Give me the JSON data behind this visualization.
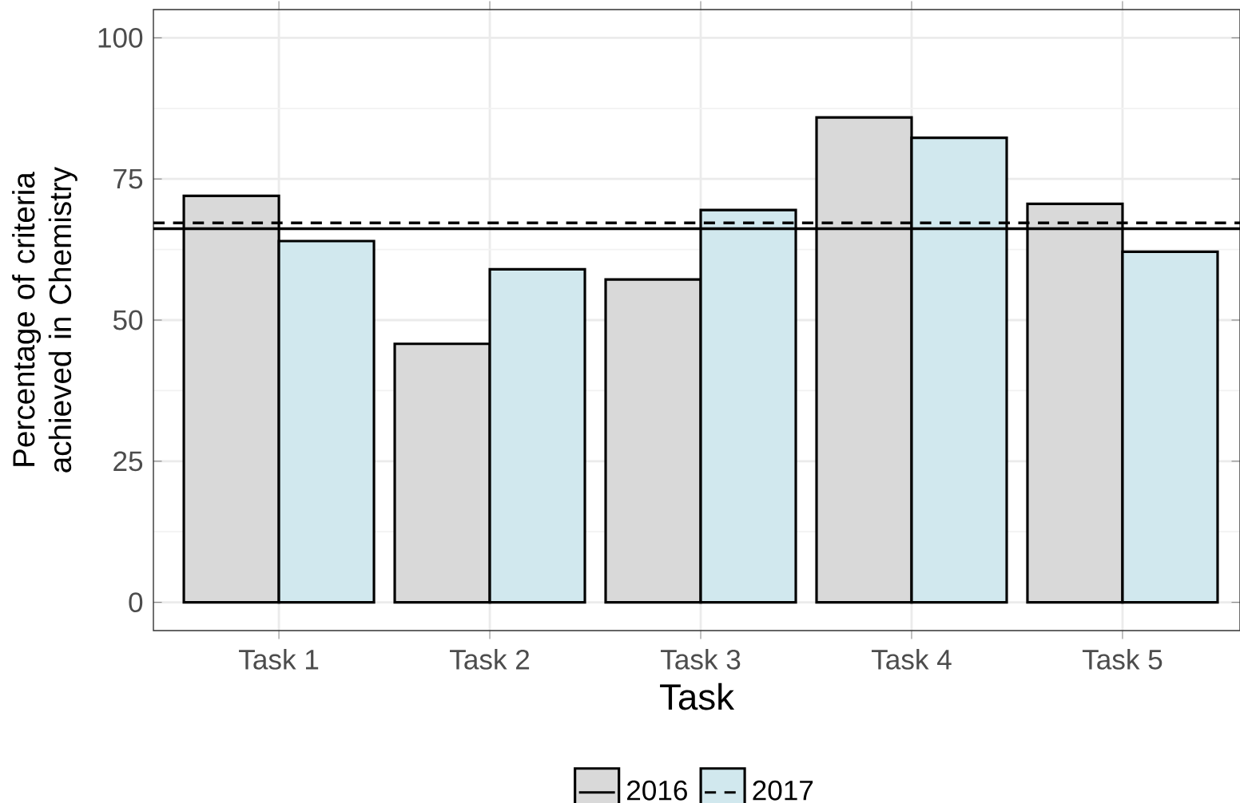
{
  "chart_data": {
    "type": "bar",
    "xlabel": "Task",
    "ylabel": "Percentage of criteria achieved in Chemistry",
    "categories": [
      "Task 1",
      "Task 2",
      "Task 3",
      "Task 4",
      "Task 5"
    ],
    "series": [
      {
        "name": "2016",
        "color": "#d9d9d9",
        "values": [
          72.0,
          45.8,
          57.2,
          85.9,
          70.6
        ]
      },
      {
        "name": "2017",
        "color": "#d1e8ee",
        "values": [
          64.0,
          59.0,
          69.5,
          82.3,
          62.1
        ]
      }
    ],
    "ylim": [
      -5,
      105
    ],
    "yticks": [
      0,
      25,
      50,
      75,
      100
    ],
    "ref_lines": [
      {
        "axis": "y",
        "value": 66.2,
        "color": "#000000",
        "line_style": "solid"
      },
      {
        "axis": "y",
        "value": 67.2,
        "color": "#000000",
        "line_style": "dashed"
      }
    ],
    "grid": true,
    "legend": "bottom"
  }
}
